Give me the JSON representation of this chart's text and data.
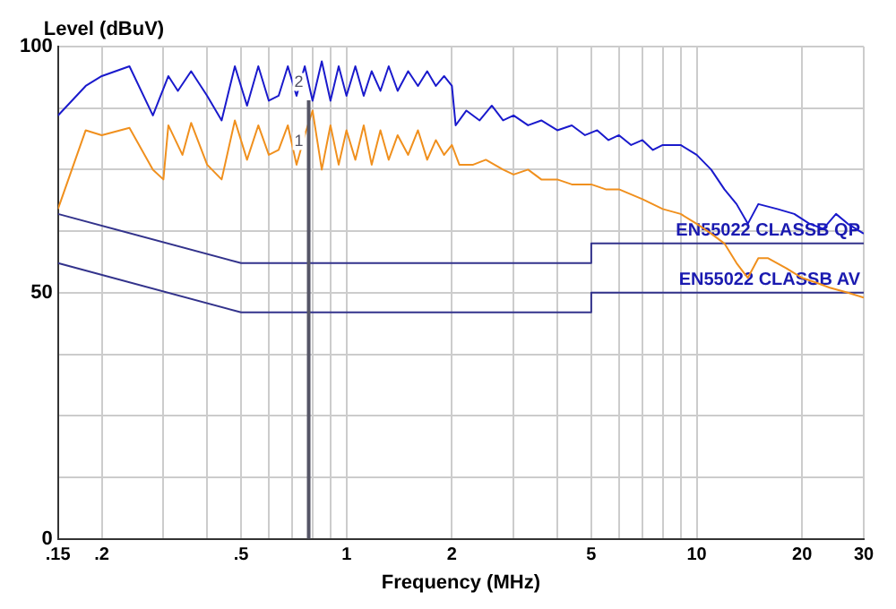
{
  "chart_data": {
    "type": "line",
    "xlabel": "Frequency (MHz)",
    "ylabel": "Level (dBuV)",
    "log": "x",
    "xlim": [
      0.15,
      30
    ],
    "ylim": [
      0,
      100
    ],
    "xticks": [
      {
        "value": 0.15,
        "label": ".15"
      },
      {
        "value": 0.2,
        "label": ".2"
      },
      {
        "value": 0.3,
        "label": null
      },
      {
        "value": 0.4,
        "label": null
      },
      {
        "value": 0.5,
        "label": ".5"
      },
      {
        "value": 0.6,
        "label": null
      },
      {
        "value": 0.7,
        "label": null
      },
      {
        "value": 0.8,
        "label": null
      },
      {
        "value": 0.9,
        "label": null
      },
      1,
      2,
      {
        "value": 3,
        "label": null
      },
      {
        "value": 4,
        "label": null
      },
      5,
      {
        "value": 6,
        "label": null
      },
      {
        "value": 7,
        "label": null
      },
      {
        "value": 8,
        "label": null
      },
      {
        "value": 9,
        "label": null
      },
      10,
      20,
      30
    ],
    "yticks": [
      0,
      {
        "value": 12.5,
        "label": null
      },
      {
        "value": 25,
        "label": null
      },
      {
        "value": 37.5,
        "label": null
      },
      50,
      {
        "value": 62.5,
        "label": null
      },
      {
        "value": 75,
        "label": null
      },
      {
        "value": 87.5,
        "label": null
      },
      100
    ],
    "grid": true,
    "legend": false,
    "marker": "none",
    "line_style": "solid",
    "ref_lines": [
      {
        "axis": "x",
        "value": 0.78,
        "color": "#555566"
      }
    ],
    "annotations": [
      {
        "text": "2",
        "x": 0.78,
        "y": 91
      },
      {
        "text": "1",
        "x": 0.78,
        "y": 79
      }
    ],
    "series": [
      {
        "color": "#1a1acc",
        "x": [
          0.15,
          0.18,
          0.2,
          0.24,
          0.28,
          0.31,
          0.33,
          0.36,
          0.4,
          0.44,
          0.48,
          0.52,
          0.56,
          0.6,
          0.64,
          0.68,
          0.72,
          0.76,
          0.8,
          0.85,
          0.9,
          0.95,
          1.0,
          1.06,
          1.12,
          1.18,
          1.25,
          1.32,
          1.4,
          1.5,
          1.6,
          1.7,
          1.8,
          1.9,
          2.0,
          2.05,
          2.2,
          2.4,
          2.6,
          2.8,
          3.0,
          3.3,
          3.6,
          4.0,
          4.4,
          4.8,
          5.2,
          5.6,
          6.0,
          6.5,
          7.0,
          7.5,
          8.0,
          9.0,
          10,
          11,
          12,
          13,
          14,
          15,
          17,
          19,
          21,
          23,
          25,
          27,
          30
        ],
        "values": [
          86,
          92,
          94,
          96,
          86,
          94,
          91,
          95,
          90,
          85,
          96,
          88,
          96,
          89,
          90,
          96,
          90,
          96,
          89,
          97,
          89,
          96,
          90,
          96,
          90,
          95,
          91,
          96,
          91,
          95,
          92,
          95,
          92,
          94,
          92,
          84,
          87,
          85,
          88,
          85,
          86,
          84,
          85,
          83,
          84,
          82,
          83,
          81,
          82,
          80,
          81,
          79,
          80,
          80,
          78,
          75,
          71,
          68,
          64,
          68,
          67,
          66,
          64,
          63,
          66,
          64,
          62
        ]
      },
      {
        "color": "#f0901e",
        "x": [
          0.15,
          0.18,
          0.2,
          0.24,
          0.28,
          0.3,
          0.31,
          0.34,
          0.36,
          0.4,
          0.44,
          0.48,
          0.52,
          0.56,
          0.6,
          0.64,
          0.68,
          0.72,
          0.76,
          0.8,
          0.85,
          0.9,
          0.95,
          1.0,
          1.06,
          1.12,
          1.18,
          1.25,
          1.32,
          1.4,
          1.5,
          1.6,
          1.7,
          1.8,
          1.9,
          2.0,
          2.1,
          2.3,
          2.5,
          2.8,
          3.0,
          3.3,
          3.6,
          4.0,
          4.4,
          5.0,
          5.5,
          6.0,
          7.0,
          8.0,
          9.0,
          10,
          11,
          12,
          13,
          14,
          15,
          16,
          18,
          20,
          22,
          24,
          27,
          30
        ],
        "values": [
          67,
          83,
          82,
          83.5,
          75,
          73,
          84,
          78,
          84.5,
          76,
          73,
          85,
          77,
          84,
          78,
          79,
          84,
          76,
          82,
          87,
          75,
          84,
          76,
          83,
          77,
          84,
          76,
          83,
          77,
          82,
          78,
          83,
          77,
          81,
          78,
          80,
          76,
          76,
          77,
          75,
          74,
          75,
          73,
          73,
          72,
          72,
          71,
          71,
          69,
          67,
          66,
          64,
          62,
          60,
          56,
          53,
          57,
          57,
          55,
          53,
          52,
          51,
          50,
          49
        ]
      },
      {
        "name": "EN55022 CLASSB QP",
        "color": "#33338c",
        "x": [
          0.15,
          0.5,
          5,
          5,
          30
        ],
        "values": [
          66,
          56,
          56,
          60,
          60
        ]
      },
      {
        "name": "EN55022 CLASSB AV",
        "color": "#33338c",
        "x": [
          0.15,
          0.5,
          5,
          5,
          30
        ],
        "values": [
          56,
          46,
          46,
          50,
          50
        ]
      }
    ]
  }
}
